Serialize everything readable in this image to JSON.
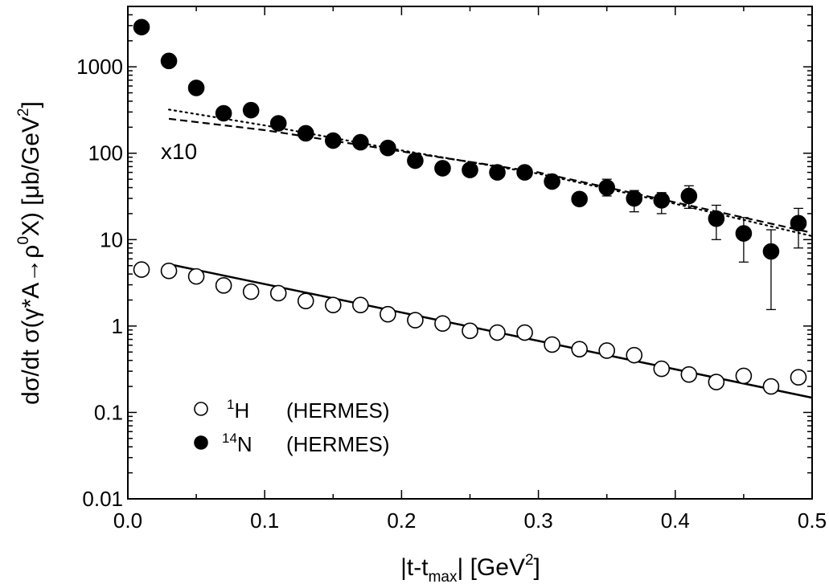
{
  "chart_data": {
    "type": "scatter",
    "xlabel": {
      "pre": "|t-t",
      "sub": "max",
      "mid": "| [GeV",
      "sup": "2",
      "post": "]"
    },
    "ylabel": {
      "a": "d",
      "sigma1": "σ",
      "b": "/dt ",
      "sigma2": "σ",
      "c": "(",
      "gamma": "γ",
      "d": "*A",
      "arrow": "→",
      "rho": "ρ",
      "sup0": "0",
      "e": "X)  [",
      "mu": "μ",
      "f": "b/GeV",
      "sup2": "2",
      "g": "]"
    },
    "xlim": [
      0.0,
      0.5
    ],
    "ylim": [
      0.01,
      5000
    ],
    "yscale": "log",
    "grid": false,
    "xticks": [
      {
        "value": 0.0,
        "label": "0.0"
      },
      {
        "value": 0.1,
        "label": "0.1"
      },
      {
        "value": 0.2,
        "label": "0.2"
      },
      {
        "value": 0.3,
        "label": "0.3"
      },
      {
        "value": 0.4,
        "label": "0.4"
      },
      {
        "value": 0.5,
        "label": "0.5"
      }
    ],
    "yticks": [
      {
        "value": 0.01,
        "label": "0.01"
      },
      {
        "value": 0.1,
        "label": "0.1"
      },
      {
        "value": 1,
        "label": "1"
      },
      {
        "value": 10,
        "label": "10"
      },
      {
        "value": 100,
        "label": "100"
      },
      {
        "value": 1000,
        "label": "1000"
      }
    ],
    "annotation": "x10",
    "legend_position": "bottom-left",
    "legend": [
      {
        "marker": "open-circle",
        "sup": "1",
        "symbol": "H",
        "label": "(HERMES)"
      },
      {
        "marker": "filled-circle",
        "sup": "14",
        "symbol": "N",
        "label": "(HERMES)"
      }
    ],
    "series": [
      {
        "marker": "open-circle",
        "points": [
          {
            "x": 0.01,
            "y": 4.5
          },
          {
            "x": 0.03,
            "y": 4.35
          },
          {
            "x": 0.05,
            "y": 3.75
          },
          {
            "x": 0.07,
            "y": 2.95
          },
          {
            "x": 0.09,
            "y": 2.5
          },
          {
            "x": 0.11,
            "y": 2.4
          },
          {
            "x": 0.13,
            "y": 1.95
          },
          {
            "x": 0.15,
            "y": 1.75
          },
          {
            "x": 0.17,
            "y": 1.75
          },
          {
            "x": 0.19,
            "y": 1.37
          },
          {
            "x": 0.21,
            "y": 1.17
          },
          {
            "x": 0.23,
            "y": 1.07
          },
          {
            "x": 0.25,
            "y": 0.88
          },
          {
            "x": 0.27,
            "y": 0.84
          },
          {
            "x": 0.29,
            "y": 0.84
          },
          {
            "x": 0.31,
            "y": 0.61
          },
          {
            "x": 0.33,
            "y": 0.54
          },
          {
            "x": 0.35,
            "y": 0.52
          },
          {
            "x": 0.37,
            "y": 0.46
          },
          {
            "x": 0.39,
            "y": 0.32
          },
          {
            "x": 0.41,
            "y": 0.275
          },
          {
            "x": 0.43,
            "y": 0.225
          },
          {
            "x": 0.45,
            "y": 0.265
          },
          {
            "x": 0.47,
            "y": 0.2
          },
          {
            "x": 0.49,
            "y": 0.255
          }
        ]
      },
      {
        "marker": "filled-circle",
        "points": [
          {
            "x": 0.01,
            "y": 2880
          },
          {
            "x": 0.03,
            "y": 1170
          },
          {
            "x": 0.05,
            "y": 570
          },
          {
            "x": 0.07,
            "y": 290
          },
          {
            "x": 0.09,
            "y": 315
          },
          {
            "x": 0.11,
            "y": 222
          },
          {
            "x": 0.13,
            "y": 170
          },
          {
            "x": 0.15,
            "y": 140
          },
          {
            "x": 0.17,
            "y": 134
          },
          {
            "x": 0.19,
            "y": 115
          },
          {
            "x": 0.21,
            "y": 82
          },
          {
            "x": 0.23,
            "y": 67
          },
          {
            "x": 0.25,
            "y": 64
          },
          {
            "x": 0.27,
            "y": 60
          },
          {
            "x": 0.29,
            "y": 60
          },
          {
            "x": 0.31,
            "y": 47
          },
          {
            "x": 0.33,
            "y": 29.5,
            "err_low": 27,
            "err_high": 32
          },
          {
            "x": 0.35,
            "y": 40,
            "err_low": 32,
            "err_high": 50
          },
          {
            "x": 0.37,
            "y": 30,
            "err_low": 21,
            "err_high": 37
          },
          {
            "x": 0.39,
            "y": 28.5,
            "err_low": 20,
            "err_high": 35
          },
          {
            "x": 0.41,
            "y": 32,
            "err_low": 23,
            "err_high": 42
          },
          {
            "x": 0.43,
            "y": 17.5,
            "err_low": 10,
            "err_high": 25
          },
          {
            "x": 0.45,
            "y": 11.8,
            "err_low": 5.5,
            "err_high": 18
          },
          {
            "x": 0.47,
            "y": 7.3,
            "err_low": 1.55,
            "err_high": 13
          },
          {
            "x": 0.49,
            "y": 15.5,
            "err_low": 8,
            "err_high": 23
          }
        ]
      }
    ],
    "curves": [
      {
        "style": "solid",
        "x": [
          0.03,
          0.5
        ],
        "y": [
          5.2,
          0.148
        ]
      },
      {
        "style": "dashed",
        "x": [
          0.03,
          0.1,
          0.2,
          0.3,
          0.4,
          0.5
        ],
        "y": [
          250,
          185,
          105,
          60,
          27,
          12
        ]
      },
      {
        "style": "dotted",
        "x": [
          0.03,
          0.1,
          0.2,
          0.3,
          0.4,
          0.5
        ],
        "y": [
          320,
          210,
          108,
          58,
          26,
          11
        ]
      }
    ]
  }
}
